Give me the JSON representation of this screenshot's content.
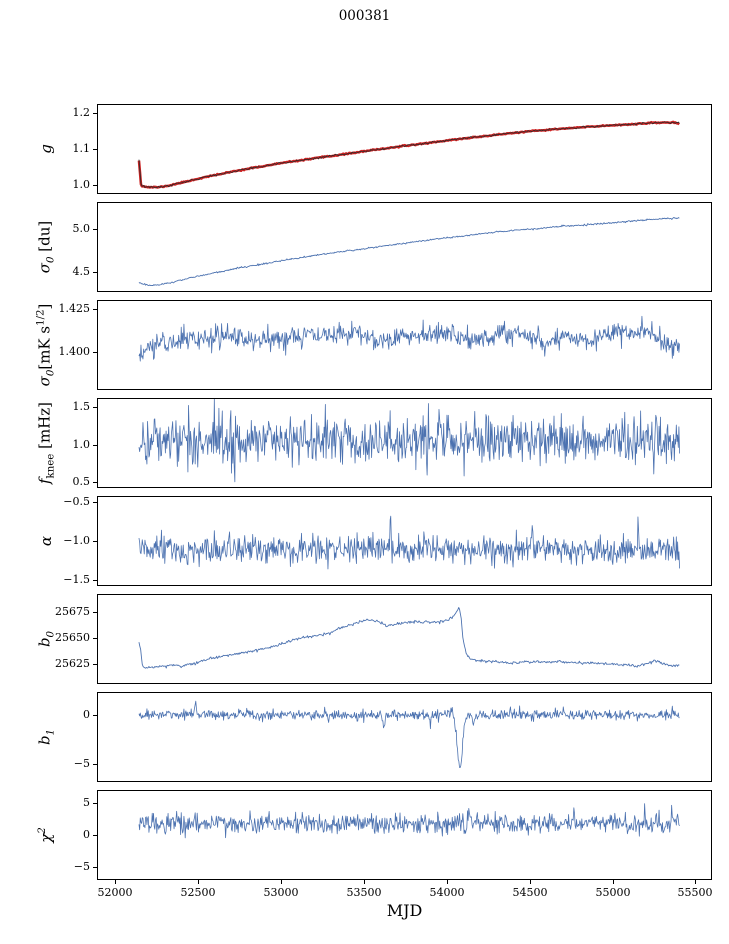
{
  "title": "000381",
  "xlabel": "MJD",
  "figure": {
    "bg": "#ffffff",
    "axis_color": "#000000",
    "line_color": "#4c72b0",
    "fit_color": "#cc2222",
    "data_color": "#2a2a2a",
    "x_range": [
      51890,
      55600
    ],
    "x_data_range": [
      52138,
      55410
    ],
    "x_ticks": [
      52000,
      52500,
      53000,
      53500,
      54000,
      54500,
      55000,
      55500
    ],
    "x_tick_labels": [
      "52000",
      "52500",
      "53000",
      "53500",
      "54000",
      "54500",
      "55000",
      "55500"
    ]
  },
  "chart_data": [
    {
      "type": "line",
      "name": "g",
      "ylabel_html": "g",
      "ylim": [
        0.975,
        1.225
      ],
      "ytick_vals": [
        1.0,
        1.1,
        1.2
      ],
      "ytick_labels": [
        "1.0",
        "1.1",
        "1.2"
      ],
      "series": [
        {
          "name": "gain-fit",
          "color": "#cc2222",
          "width": 2.6,
          "type": "keypoints",
          "noise": 0.0008,
          "step": 6,
          "seed": 11,
          "points": [
            [
              52138,
              1.068
            ],
            [
              52142,
              1.05
            ],
            [
              52146,
              1.02
            ],
            [
              52150,
              1.0
            ],
            [
              52155,
              0.996
            ],
            [
              52170,
              0.993
            ],
            [
              52200,
              0.9915
            ],
            [
              52260,
              0.9915
            ],
            [
              52320,
              0.996
            ],
            [
              52400,
              1.005
            ],
            [
              52500,
              1.016
            ],
            [
              52600,
              1.026
            ],
            [
              52750,
              1.04
            ],
            [
              52900,
              1.052
            ],
            [
              53000,
              1.06
            ],
            [
              53150,
              1.07
            ],
            [
              53300,
              1.08
            ],
            [
              53450,
              1.09
            ],
            [
              53600,
              1.1
            ],
            [
              53750,
              1.109
            ],
            [
              53900,
              1.118
            ],
            [
              54050,
              1.127
            ],
            [
              54200,
              1.135
            ],
            [
              54350,
              1.143
            ],
            [
              54500,
              1.15
            ],
            [
              54650,
              1.156
            ],
            [
              54800,
              1.161
            ],
            [
              54950,
              1.166
            ],
            [
              55100,
              1.17
            ],
            [
              55250,
              1.174
            ],
            [
              55350,
              1.176
            ],
            [
              55410,
              1.171
            ]
          ]
        },
        {
          "name": "gain-data",
          "color": "#2a2a2a",
          "width": 0.8,
          "type": "keypoints",
          "noise": 0.0013,
          "step": 6,
          "seed": 12,
          "points": [
            [
              52138,
              1.068
            ],
            [
              52142,
              1.05
            ],
            [
              52146,
              1.02
            ],
            [
              52150,
              1.0
            ],
            [
              52155,
              0.996
            ],
            [
              52170,
              0.993
            ],
            [
              52200,
              0.9915
            ],
            [
              52260,
              0.9915
            ],
            [
              52320,
              0.996
            ],
            [
              52400,
              1.005
            ],
            [
              52500,
              1.016
            ],
            [
              52600,
              1.026
            ],
            [
              52750,
              1.04
            ],
            [
              52900,
              1.052
            ],
            [
              53000,
              1.06
            ],
            [
              53150,
              1.07
            ],
            [
              53300,
              1.08
            ],
            [
              53450,
              1.09
            ],
            [
              53600,
              1.1
            ],
            [
              53750,
              1.109
            ],
            [
              53900,
              1.118
            ],
            [
              54050,
              1.127
            ],
            [
              54200,
              1.135
            ],
            [
              54350,
              1.143
            ],
            [
              54500,
              1.15
            ],
            [
              54650,
              1.156
            ],
            [
              54800,
              1.161
            ],
            [
              54950,
              1.166
            ],
            [
              55100,
              1.17
            ],
            [
              55250,
              1.174
            ],
            [
              55350,
              1.176
            ],
            [
              55410,
              1.175
            ]
          ]
        }
      ]
    },
    {
      "type": "line",
      "name": "sigma0-du",
      "ylabel_html": "σ<sub>0</sub> <span class='rm'>[du]</span>",
      "ylim": [
        4.26,
        5.32
      ],
      "ytick_vals": [
        4.5,
        5.0
      ],
      "ytick_labels": [
        "4.5",
        "5.0"
      ],
      "series": [
        {
          "name": "sigma0-du",
          "color": "#4c72b0",
          "width": 0.9,
          "type": "keypoints",
          "noise": 0.005,
          "step": 5,
          "seed": 21,
          "points": [
            [
              52138,
              4.37
            ],
            [
              52150,
              4.35
            ],
            [
              52200,
              4.33
            ],
            [
              52260,
              4.33
            ],
            [
              52350,
              4.37
            ],
            [
              52450,
              4.42
            ],
            [
              52600,
              4.48
            ],
            [
              52750,
              4.54
            ],
            [
              52900,
              4.59
            ],
            [
              53050,
              4.64
            ],
            [
              53200,
              4.69
            ],
            [
              53350,
              4.73
            ],
            [
              53500,
              4.77
            ],
            [
              53650,
              4.81
            ],
            [
              53800,
              4.85
            ],
            [
              53950,
              4.89
            ],
            [
              54100,
              4.92
            ],
            [
              54250,
              4.96
            ],
            [
              54400,
              4.99
            ],
            [
              54550,
              5.01
            ],
            [
              54700,
              5.04
            ],
            [
              54850,
              5.06
            ],
            [
              55000,
              5.08
            ],
            [
              55150,
              5.11
            ],
            [
              55300,
              5.13
            ],
            [
              55410,
              5.14
            ]
          ]
        }
      ]
    },
    {
      "type": "line",
      "name": "sigma0-mks",
      "ylabel_html": "σ<sub>0</sub><span class='rm'>[mK s<sup>1/2</sup>]</span>",
      "ylim": [
        1.378,
        1.43
      ],
      "ytick_vals": [
        1.4,
        1.425
      ],
      "ytick_labels": [
        "1.400",
        "1.425"
      ],
      "series": [
        {
          "name": "sigma0-mks",
          "color": "#4c72b0",
          "width": 0.8,
          "type": "noisy",
          "std": 0.0032,
          "step": 4,
          "seed": 31,
          "trend": [
            [
              52138,
              1.396
            ],
            [
              52200,
              1.403
            ],
            [
              52300,
              1.406
            ],
            [
              52500,
              1.408
            ],
            [
              52700,
              1.409
            ],
            [
              52900,
              1.406
            ],
            [
              53100,
              1.41
            ],
            [
              53300,
              1.409
            ],
            [
              53450,
              1.412
            ],
            [
              53600,
              1.407
            ],
            [
              53800,
              1.41
            ],
            [
              54000,
              1.412
            ],
            [
              54150,
              1.406
            ],
            [
              54300,
              1.41
            ],
            [
              54450,
              1.411
            ],
            [
              54600,
              1.405
            ],
            [
              54750,
              1.41
            ],
            [
              54900,
              1.407
            ],
            [
              55050,
              1.412
            ],
            [
              55200,
              1.412
            ],
            [
              55300,
              1.407
            ],
            [
              55410,
              1.402
            ]
          ]
        }
      ]
    },
    {
      "type": "line",
      "name": "fknee",
      "ylabel_html": "f<sub class='rm'>knee</sub> <span class='rm'>[mHz]</span>",
      "ylim": [
        0.42,
        1.62
      ],
      "ytick_vals": [
        0.5,
        1.0,
        1.5
      ],
      "ytick_labels": [
        "0.5",
        "1.0",
        "1.5"
      ],
      "series": [
        {
          "name": "fknee",
          "color": "#4c72b0",
          "width": 0.8,
          "type": "noisy",
          "mean": 1.06,
          "std": 0.17,
          "step": 4,
          "seed": 41
        }
      ]
    },
    {
      "type": "line",
      "name": "alpha",
      "ylabel_html": "α",
      "ylim": [
        -1.575,
        -0.425
      ],
      "ytick_vals": [
        -0.5,
        -1.0,
        -1.5
      ],
      "ytick_labels": [
        "−0.5",
        "−1.0",
        "−1.5"
      ],
      "series": [
        {
          "name": "alpha",
          "color": "#4c72b0",
          "width": 0.8,
          "type": "noisy",
          "mean": -1.12,
          "std": 0.09,
          "step": 4,
          "seed": 51,
          "spikes": [
            {
              "x": 53660,
              "v": 0.45,
              "w": 5
            },
            {
              "x": 55160,
              "v": 0.3,
              "w": 5
            },
            {
              "x": 52430,
              "v": -0.25,
              "w": 5
            },
            {
              "x": 54520,
              "v": 0.28,
              "w": 4
            }
          ]
        }
      ]
    },
    {
      "type": "line",
      "name": "b0",
      "ylabel_html": "b<sub>0</sub>",
      "ylim": [
        25605,
        25693
      ],
      "ytick_vals": [
        25625,
        25650,
        25675
      ],
      "ytick_labels": [
        "25625",
        "25650",
        "25675"
      ],
      "series": [
        {
          "name": "b0",
          "color": "#4c72b0",
          "width": 0.9,
          "type": "keypoints",
          "noise": 0.7,
          "step": 5,
          "seed": 61,
          "points": [
            [
              52138,
              25646
            ],
            [
              52148,
              25638
            ],
            [
              52160,
              25622
            ],
            [
              52180,
              25620
            ],
            [
              52250,
              25621
            ],
            [
              52330,
              25623
            ],
            [
              52400,
              25622
            ],
            [
              52480,
              25625
            ],
            [
              52560,
              25629
            ],
            [
              52650,
              25632
            ],
            [
              52750,
              25635
            ],
            [
              52850,
              25638
            ],
            [
              52950,
              25641
            ],
            [
              53050,
              25647
            ],
            [
              53120,
              25650
            ],
            [
              53200,
              25652
            ],
            [
              53280,
              25654
            ],
            [
              53360,
              25660
            ],
            [
              53440,
              25664
            ],
            [
              53520,
              25668
            ],
            [
              53580,
              25667
            ],
            [
              53640,
              25662
            ],
            [
              53700,
              25664
            ],
            [
              53780,
              25666
            ],
            [
              53880,
              25666
            ],
            [
              53960,
              25666
            ],
            [
              54010,
              25668
            ],
            [
              54040,
              25671
            ],
            [
              54060,
              25676
            ],
            [
              54075,
              25681
            ],
            [
              54085,
              25674
            ],
            [
              54100,
              25648
            ],
            [
              54120,
              25634
            ],
            [
              54150,
              25629
            ],
            [
              54220,
              25627
            ],
            [
              54300,
              25626
            ],
            [
              54400,
              25625
            ],
            [
              54500,
              25626
            ],
            [
              54600,
              25626
            ],
            [
              54700,
              25626
            ],
            [
              54800,
              25625
            ],
            [
              54900,
              25625
            ],
            [
              55000,
              25624
            ],
            [
              55080,
              25623
            ],
            [
              55150,
              25622
            ],
            [
              55220,
              25624
            ],
            [
              55260,
              25628
            ],
            [
              55300,
              25625
            ],
            [
              55360,
              25622
            ],
            [
              55410,
              25622
            ]
          ]
        }
      ]
    },
    {
      "type": "line",
      "name": "b1",
      "ylabel_html": "b<sub>1</sub>",
      "ylim": [
        -6.8,
        2.3
      ],
      "ytick_vals": [
        0,
        -5
      ],
      "ytick_labels": [
        "0",
        "−5"
      ],
      "series": [
        {
          "name": "b1",
          "color": "#4c72b0",
          "width": 0.8,
          "type": "noisy",
          "mean": 0.05,
          "std": 0.27,
          "step": 4,
          "seed": 71,
          "spikes": [
            {
              "x": 52480,
              "v": 2.1,
              "w": 6
            },
            {
              "x": 53620,
              "v": -1.4,
              "w": 8
            },
            {
              "x": 53900,
              "v": -1.0,
              "w": 6
            },
            {
              "x": 54080,
              "v": -5.6,
              "w": 22
            },
            {
              "x": 54160,
              "v": -1.2,
              "w": 8
            }
          ]
        }
      ]
    },
    {
      "type": "line",
      "name": "chi2",
      "ylabel_html": "χ<sup>2</sup>",
      "ylim": [
        -7.1,
        7.1
      ],
      "ytick_vals": [
        -5,
        0,
        5
      ],
      "ytick_labels": [
        "−5",
        "0",
        "5"
      ],
      "series": [
        {
          "name": "chi2",
          "color": "#4c72b0",
          "width": 0.8,
          "type": "noisy",
          "mean": 1.9,
          "std": 0.8,
          "step": 4,
          "seed": 81
        }
      ]
    }
  ]
}
